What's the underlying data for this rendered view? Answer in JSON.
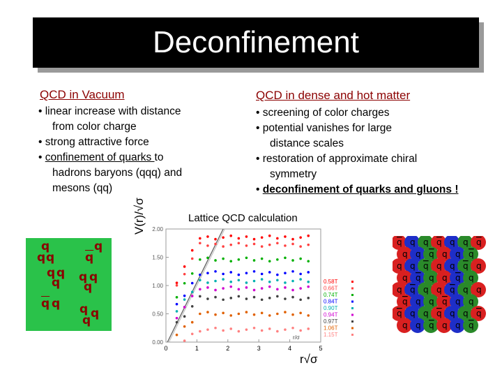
{
  "slide": {
    "title": "Deconfinement",
    "left": {
      "heading": "QCD in Vacuum",
      "bullets": [
        {
          "text": "linear increase with distance",
          "cont": "from color charge"
        },
        {
          "text": "strong attractive force"
        },
        {
          "pre": "",
          "ul": "confinement of quarks ",
          "post": "to",
          "cont": "hadrons baryons (qqq) and",
          "cont2": "mesons (qq)"
        }
      ]
    },
    "right": {
      "heading": "QCD in dense and hot matter",
      "bullets": [
        {
          "text": "screening of color charges"
        },
        {
          "text": "potential vanishes for large",
          "cont": "distance scales"
        },
        {
          "text": "restoration of approximate chiral",
          "cont": "symmetry"
        },
        {
          "ul": "deconfinement of quarks and gluons !"
        }
      ]
    },
    "lattice_label": "Lattice QCD calculation",
    "quark_glyph": "q",
    "hadron_panel_color": "#2ac24a",
    "plasma_colors": [
      "#d92020",
      "#2a8a2a",
      "#1e2ec8"
    ]
  },
  "chart_data": {
    "type": "scatter",
    "ylabel": "V(r)/√σ",
    "xlabel": "r√σ",
    "inner_xlabel": "r/σ",
    "xlim": [
      0,
      5
    ],
    "ylim": [
      0,
      2.0
    ],
    "xticks": [
      "0",
      "1",
      "2",
      "3",
      "4",
      "5"
    ],
    "yticks": [
      "0.00",
      "0.50",
      "1.00",
      "1.50",
      "2.00"
    ],
    "legend_position": "right",
    "series": [
      {
        "name": "0.58T",
        "color": "#ff0000",
        "plateau": 1.85
      },
      {
        "name": "0.66T",
        "color": "#ff4040",
        "plateau": 1.72
      },
      {
        "name": "0.74T",
        "color": "#00b000",
        "plateau": 1.46
      },
      {
        "name": "0.84T",
        "color": "#0000ff",
        "plateau": 1.22
      },
      {
        "name": "0.90T",
        "color": "#00b0b0",
        "plateau": 1.08
      },
      {
        "name": "0.94T",
        "color": "#d000d0",
        "plateau": 0.95
      },
      {
        "name": "0.97T",
        "color": "#404040",
        "plateau": 0.78
      },
      {
        "name": "1.06T",
        "color": "#e06000",
        "plateau": 0.5
      },
      {
        "name": "1.15T",
        "color": "#ff8080",
        "plateau": 0.22
      }
    ]
  }
}
